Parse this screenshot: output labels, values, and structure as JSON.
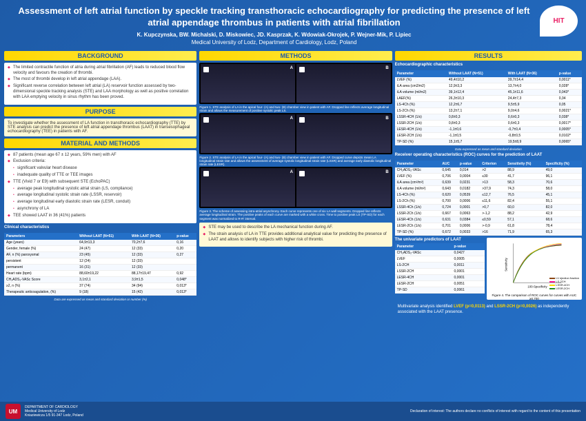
{
  "title": "Assessment of left atrial function by speckle tracking transthoracic echocardiography for predicting the presence of left atrial appendage thrombus in patients with atrial fibrillation",
  "authors": "K. Kupczynska, BW. Michalski, D. Miskowiec, JD. Kasprzak, K. Wdowiak-Okrojek, P. Wejner-Mik, P. Lipiec",
  "affiliation": "Medical University of Lodz, Department of Cardiology, Lodz, Poland",
  "logo_text": "HIT",
  "logo_sub": "EACVI's Heart Imagers of Tomorrow",
  "sections": {
    "background": "BACKGROUND",
    "purpose": "PURPOSE",
    "material": "MATERIAL AND METHODS",
    "methods": "METHODS",
    "results": "RESULTS"
  },
  "background": [
    "The limited contractile function of atria during atrial fibrillation (AF) leads to reduced blood flow velocity and favours the creation of thrombi.",
    "The most of thrombi develop in left atrial appendage (LAA).",
    "Significant reverse correlation between left atrial (LA) reservoir function assessed by two-dimensional speckle tracking analysis (STE) and LAA morphology as well as positive correlation with LAA emptying velocity in sinus rhythm has been proved."
  ],
  "purpose": "To investigate whether the assessment of LA function in transthoracic echocardiography (TTE) by STE analysis can predict the presence of left atrial appendage thrombus (LAAT) in transesophageal echocardiography (TEE) in patients with AF.",
  "material": {
    "intro": "87 patients (mean age 67 ± 12 years, 59% men) with AF",
    "exclusion_hdr": "Exclusion criteria:",
    "exclusion": [
      "significant valvular heart disease",
      "inadequate quality of TTE or TEE images"
    ],
    "tte_hdr": "TTE (Vivid 7 or E9) with subsequent STE (EchoPAC)",
    "tte": [
      "average peak longitudinal systolic atrial strain (LS, compliance)",
      "average longitudinal systolic strain rate (LSSR, reservoir)",
      "average longitudinal early diastolic strain rate (LESR, conduit)",
      "asynchrony of LA"
    ],
    "tee": "TEE showed LAAT in 36 (41%) patients"
  },
  "clinical_title": "Clinical characteristics",
  "clinical": {
    "cols": [
      "Parameters",
      "Without LAAT (N=51)",
      "With LAAT (N=36)",
      "p-value"
    ],
    "rows": [
      [
        "Age (years)",
        "64,9±13,3",
        "70,2±7,6",
        "0,16"
      ],
      [
        "Gender, female (%)",
        "24 (47)",
        "12 (33)",
        "0,20"
      ],
      [
        "AF, n (%) paroxysmal",
        "23 (45)",
        "12 (33)",
        "0,27"
      ],
      [
        "persistent",
        "12 (24)",
        "12 (33)",
        ""
      ],
      [
        "permanent",
        "16 (31)",
        "12 (33)",
        ""
      ],
      [
        "Heart rate (bpm)",
        "88,60±19,22",
        "88,17±19,47",
        "0,92"
      ],
      [
        "CH₂ADS₂-VASc Score",
        "3,1±2,1",
        "3,9±1,5",
        "0,048*"
      ],
      [
        "≥2, n (%)",
        "37 (74)",
        "34 (94)",
        "0,013*"
      ],
      [
        "Therapeutic anticoagulation, (%)",
        "9 (18)",
        "15 (42)",
        "0,013*"
      ]
    ],
    "note": "Data are expressed as mean and standard deviation or number (%)"
  },
  "figures": [
    {
      "caption": "Figure 1. STE analysis of LA in the apical four- (A) and two- (B) chamber view in patient with AF. Dropped line reflects average longitudinal strain and allows the measurement of positive systolic peak LS."
    },
    {
      "caption": "Figure 2. STE analysis of LA in the apical four- (A) and two- (B) chamber view in patient with AF. Dropped curve depicts mean LA longitudinal strain rate and allows the assessment of average systolic longitudinal strain rate (LSSR) and average early diastolic longitudinal strain rate (LESR)."
    },
    {
      "caption": "Figure 3. The scheme of assessing intra-atrial asynchrony. Each curve represents one of six LA wall segments. Dropped line reflects average longitudinal strain. The positive peaks of each curve are marked with a white cross. Time to positive peak LS (TP-SD) for each segment was normalized to R-R' interval."
    }
  ],
  "conclusion": [
    "STE may be used to describe the LA mechanical function during AF.",
    "The strain analysis of LA in TTE provides additional analytical value for predicting the presence of LAAT and allows to identify subjects with higher risk of thrombi."
  ],
  "echo_title": "Echocardiographic characteristics",
  "echo": {
    "cols": [
      "Parameter",
      "Without LAAT (N=51)",
      "With LAAT (N=36)",
      "p-value"
    ],
    "rows": [
      [
        "LVEF (%)",
        "49,4±10,2",
        "39,7±14,4",
        "0,0011*"
      ],
      [
        "iLA area (cm2/m2)",
        "12,9±3,3",
        "13,7±4,0",
        "0,028*"
      ],
      [
        "iLA volume (ml/m2)",
        "39,1±12,4",
        "45,1±11,6",
        "0,043*"
      ],
      [
        "LAEF(%)",
        "26,3±10,3",
        "24,4±7,3",
        "0,34"
      ],
      [
        "LS-4Ch (%)",
        "12,2±6,7",
        "9,5±5,9",
        "0,05"
      ],
      [
        "LS-2Ch (%)",
        "13,2±7,1",
        "9,0±4,6",
        "0,0021*"
      ],
      [
        "LSSR-4CH (1/s)",
        "0,8±0,3",
        "0,6±0,3",
        "0,038*"
      ],
      [
        "LSSR-2CH (1/s)",
        "0,8±0,3",
        "0,6±0,3",
        "0,0017*"
      ],
      [
        "LESR-4CH (1/s)",
        "-1,1±0,6",
        "-0,7±0,4",
        "0,0005*"
      ],
      [
        "LESR-2CH (1/s)",
        "-1,1±0,5",
        "-0,8±0,5",
        "0,0102*"
      ],
      [
        "TP-SD (%)",
        "15,1±5,7",
        "19,5±8,9",
        "0,0065*"
      ]
    ],
    "note": "Data expressed as mean and standard deviation"
  },
  "roc_title": "Receiver operating characteristics (ROC) curves for the prediction of LAAT",
  "roc": {
    "cols": [
      "Parameter",
      "AUC",
      "p-value",
      "Criterion",
      "Sensitivity (%)",
      "Specificity (%)"
    ],
    "rows": [
      [
        "CH₂ADS₂-VASc",
        "0,645",
        "0,014",
        ">2",
        "88,9",
        "49,0"
      ],
      [
        "LVEF (%)",
        "0,706",
        "0,0004",
        "≤30",
        "41,7",
        "96,1"
      ],
      [
        "iLA area (cm²/m²)",
        "0,639",
        "0,0231",
        ">13",
        "58,3",
        "70,6"
      ],
      [
        "iLA volume (ml/m²)",
        "0,643",
        "0,0182",
        ">37,9",
        "74,3",
        "58,0"
      ],
      [
        "LS-4Ch (%)",
        "0,620",
        "0,0539",
        "≤12,7",
        "76,5",
        "45,1"
      ],
      [
        "LS-2Ch (%)",
        "0,700",
        "0,0006",
        "≤11,6",
        "82,4",
        "55,1"
      ],
      [
        "LSSR-4Ch (1/s)",
        "0,724",
        "0,0001",
        ">0,7",
        "60,0",
        "82,0"
      ],
      [
        "LSSR-2Ch (1/s)",
        "0,667",
        "0,0063",
        ">-1,2",
        "88,2",
        "42,9"
      ],
      [
        "LESR-4Ch (1/s)",
        "0,631",
        "0,0384",
        "≤0,59",
        "57,1",
        "68,6"
      ],
      [
        "LESR-2Ch (1/s)",
        "0,701",
        "0,0006",
        ">-0,9",
        "61,8",
        "78,4"
      ],
      [
        "TP-SD (%)",
        "0,672",
        "0,0033",
        ">16",
        "71,9",
        "65,3"
      ]
    ]
  },
  "univariate_title": "The univariate predictors of LAAT",
  "univariate": {
    "cols": [
      "Parameter",
      "p-value"
    ],
    "rows": [
      [
        "CH₂ADS₂-VASc",
        "0,0427"
      ],
      [
        "LVEF",
        "0,0005"
      ],
      [
        "LS-2CH",
        "0,0011"
      ],
      [
        "LSSR-2CH",
        "0,0001"
      ],
      [
        "LESR-4CH",
        "0,0001"
      ],
      [
        "LESR-2CH",
        "0,0051"
      ],
      [
        "TP-SD",
        "0,0061"
      ]
    ]
  },
  "roc_caption": "Figure 4. The comparison of ROC curves for curves with AUC ≥0,700",
  "roc_chart": {
    "curves": [
      {
        "label": "LV ejection fraction",
        "color": "#8b4513"
      },
      {
        "label": "LS-2CH",
        "color": "#ff1493"
      },
      {
        "label": "LSSR-4CH",
        "color": "#ffd700"
      },
      {
        "label": "LESR-2CH",
        "color": "#228b22"
      }
    ],
    "xlabel": "100-Specificity",
    "ylabel": "Sensitivity"
  },
  "multivariate": "Multivariate analysis identified LVEF (p=0,0113) and LSSR-2CH (p=0,0026) as independently associated with the LAAT presence.",
  "footer": {
    "dept": "DEPARTMENT OF CARDIOLOGY",
    "univ": "Medical University of Lodz",
    "addr": "Kniaziewicza 1/5",
    "city": "91-347 Lodz, Poland",
    "disclaimer": "Declaration of interest: The authors declare no conflicts of interest with regard to the content of this presentation"
  }
}
